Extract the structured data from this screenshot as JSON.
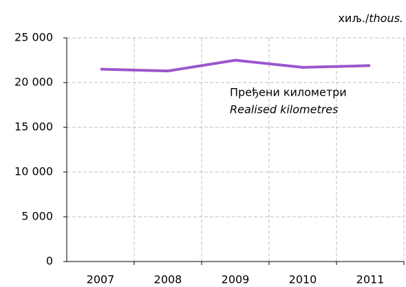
{
  "chart_data": {
    "type": "line",
    "unit_label": {
      "plain": "хиљ./",
      "italic": "thous."
    },
    "annotation": {
      "line1": "Пређени километри",
      "line2": "Realised kilometres"
    },
    "categories": [
      "2007",
      "2008",
      "2009",
      "2010",
      "2011"
    ],
    "series": [
      {
        "name": "Пређени километри",
        "color": "#9a57cd",
        "values": [
          21500,
          21300,
          22500,
          21700,
          21900
        ]
      }
    ],
    "ylim": [
      0,
      25000
    ],
    "yticks": [
      0,
      {
        "value": 5000,
        "label": "5 000"
      },
      {
        "value": 10000,
        "label": "10 000"
      },
      {
        "value": 15000,
        "label": "15 000"
      },
      {
        "value": 20000,
        "label": "20 000"
      },
      {
        "value": 25000,
        "label": "25 000"
      }
    ],
    "grid": true
  }
}
